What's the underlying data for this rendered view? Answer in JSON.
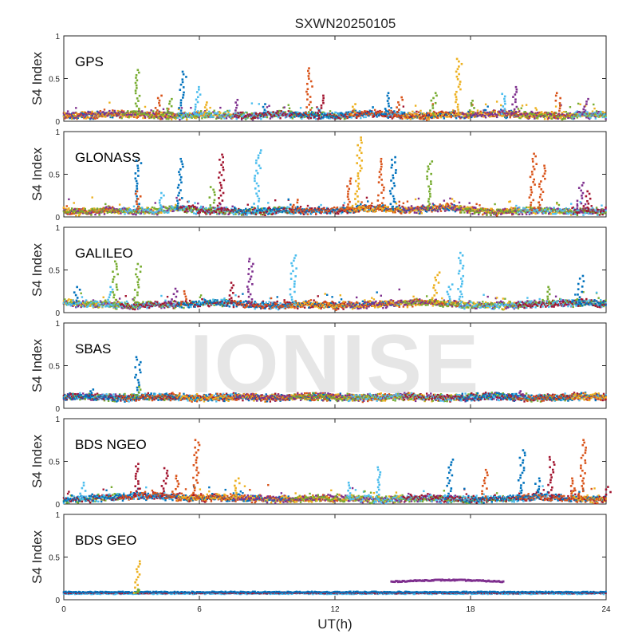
{
  "chart_data": {
    "type": "scatter",
    "title": "SXWN20250105",
    "xlabel": "UT(h)",
    "ylabel": "S4 Index",
    "xlim": [
      0,
      24
    ],
    "ylim": [
      0,
      1
    ],
    "xticks": [
      "0",
      "6",
      "12",
      "18",
      "24"
    ],
    "yticks": [
      "0",
      "0.5",
      "1"
    ],
    "grid": false,
    "watermark": "IONISE",
    "series_colors": [
      "#0072BD",
      "#D95319",
      "#EDB120",
      "#7E2F8E",
      "#77AC30",
      "#4DBEEE",
      "#A2142F"
    ],
    "panels": [
      {
        "label": "GPS",
        "baseline": [
          0.06,
          0.07,
          0.08,
          0.09,
          0.07,
          0.06,
          0.08,
          0.07,
          0.06,
          0.07,
          0.08,
          0.07,
          0.06,
          0.08,
          0.09,
          0.07,
          0.06,
          0.08,
          0.07,
          0.09,
          0.08,
          0.07,
          0.06,
          0.08,
          0.07
        ],
        "spikes": [
          [
            3.2,
            0.6,
            4
          ],
          [
            4.1,
            0.3,
            1
          ],
          [
            4.6,
            0.26,
            4
          ],
          [
            5.2,
            0.58,
            0
          ],
          [
            5.9,
            0.4,
            5
          ],
          [
            6.3,
            0.22,
            2
          ],
          [
            7.6,
            0.25,
            3
          ],
          [
            8.8,
            0.2,
            0
          ],
          [
            10.8,
            0.62,
            1
          ],
          [
            11.3,
            0.3,
            6
          ],
          [
            12.8,
            0.2,
            2
          ],
          [
            14.3,
            0.33,
            0
          ],
          [
            14.8,
            0.28,
            1
          ],
          [
            16.3,
            0.33,
            4
          ],
          [
            17.4,
            0.73,
            2
          ],
          [
            18.0,
            0.24,
            4
          ],
          [
            19.4,
            0.32,
            5
          ],
          [
            19.9,
            0.4,
            3
          ],
          [
            21.8,
            0.33,
            1
          ],
          [
            23.0,
            0.26,
            3
          ]
        ]
      },
      {
        "label": "GLONASS",
        "baseline": [
          0.07,
          0.06,
          0.08,
          0.06,
          0.07,
          0.1,
          0.08,
          0.07,
          0.06,
          0.07,
          0.08,
          0.07,
          0.08,
          0.09,
          0.1,
          0.08,
          0.09,
          0.12,
          0.08,
          0.06,
          0.07,
          0.08,
          0.06,
          0.07,
          0.06
        ],
        "spikes": [
          [
            3.2,
            0.66,
            0
          ],
          [
            3.2,
            0.3,
            1
          ],
          [
            4.3,
            0.28,
            5
          ],
          [
            5.1,
            0.68,
            0
          ],
          [
            6.5,
            0.35,
            4
          ],
          [
            6.9,
            0.73,
            6
          ],
          [
            8.5,
            0.78,
            5
          ],
          [
            10.2,
            0.2,
            1
          ],
          [
            12.5,
            0.45,
            1
          ],
          [
            13.0,
            0.93,
            2
          ],
          [
            14.0,
            0.68,
            1
          ],
          [
            14.5,
            0.7,
            0
          ],
          [
            16.1,
            0.65,
            4
          ],
          [
            20.7,
            0.74,
            1
          ],
          [
            21.1,
            0.6,
            1
          ],
          [
            22.8,
            0.4,
            3
          ],
          [
            23.1,
            0.3,
            6
          ]
        ]
      },
      {
        "label": "GALILEO",
        "baseline": [
          0.12,
          0.1,
          0.09,
          0.08,
          0.1,
          0.09,
          0.11,
          0.12,
          0.1,
          0.08,
          0.09,
          0.1,
          0.08,
          0.09,
          0.1,
          0.11,
          0.12,
          0.1,
          0.09,
          0.08,
          0.09,
          0.1,
          0.11,
          0.12,
          0.1
        ],
        "spikes": [
          [
            0.5,
            0.3,
            0
          ],
          [
            2.0,
            0.3,
            5
          ],
          [
            2.2,
            0.6,
            4
          ],
          [
            3.2,
            0.57,
            4
          ],
          [
            4.8,
            0.28,
            3
          ],
          [
            5.3,
            0.25,
            1
          ],
          [
            7.4,
            0.35,
            6
          ],
          [
            8.2,
            0.63,
            3
          ],
          [
            10.1,
            0.67,
            5
          ],
          [
            16.4,
            0.47,
            2
          ],
          [
            17.0,
            0.33,
            5
          ],
          [
            17.5,
            0.7,
            5
          ],
          [
            21.4,
            0.3,
            4
          ],
          [
            22.8,
            0.43,
            0
          ]
        ]
      },
      {
        "label": "SBAS",
        "baseline": [
          0.13,
          0.14,
          0.13,
          0.12,
          0.14,
          0.13,
          0.12,
          0.13,
          0.14,
          0.12,
          0.13,
          0.14,
          0.13,
          0.12,
          0.13,
          0.14,
          0.13,
          0.12,
          0.13,
          0.14,
          0.13,
          0.12,
          0.13,
          0.14,
          0.13
        ],
        "spikes": [
          [
            1.1,
            0.22,
            0
          ],
          [
            3.2,
            0.6,
            0
          ],
          [
            3.2,
            0.25,
            4
          ],
          [
            20.2,
            0.2,
            3
          ]
        ]
      },
      {
        "label": "BDS NGEO",
        "baseline": [
          0.05,
          0.06,
          0.08,
          0.09,
          0.1,
          0.08,
          0.07,
          0.08,
          0.07,
          0.06,
          0.05,
          0.06,
          0.07,
          0.06,
          0.05,
          0.06,
          0.07,
          0.06,
          0.05,
          0.06,
          0.07,
          0.08,
          0.07,
          0.06,
          0.05
        ],
        "spikes": [
          [
            0.8,
            0.25,
            5
          ],
          [
            3.2,
            0.47,
            6
          ],
          [
            4.4,
            0.42,
            6
          ],
          [
            4.9,
            0.33,
            1
          ],
          [
            5.8,
            0.75,
            1
          ],
          [
            7.6,
            0.3,
            2
          ],
          [
            12.6,
            0.25,
            5
          ],
          [
            13.9,
            0.43,
            5
          ],
          [
            17.0,
            0.52,
            0
          ],
          [
            18.6,
            0.4,
            1
          ],
          [
            20.2,
            0.63,
            0
          ],
          [
            20.9,
            0.3,
            0
          ],
          [
            21.5,
            0.55,
            6
          ],
          [
            22.5,
            0.3,
            1
          ],
          [
            22.9,
            0.75,
            1
          ],
          [
            24.0,
            0.2,
            6
          ]
        ]
      },
      {
        "label": "BDS GEO",
        "baseline": [
          0.08,
          0.08,
          0.08,
          0.08,
          0.08,
          0.08,
          0.08,
          0.08,
          0.08,
          0.08,
          0.08,
          0.08,
          0.08,
          0.08,
          0.08,
          0.08,
          0.08,
          0.08,
          0.08,
          0.08,
          0.08,
          0.08,
          0.08,
          0.08,
          0.08
        ],
        "spikes": [
          [
            3.2,
            0.45,
            2
          ],
          [
            3.2,
            0.12,
            4
          ]
        ],
        "segment": {
          "x_start": 14.5,
          "x_end": 19.5,
          "y": 0.21,
          "color": 3
        }
      }
    ]
  }
}
